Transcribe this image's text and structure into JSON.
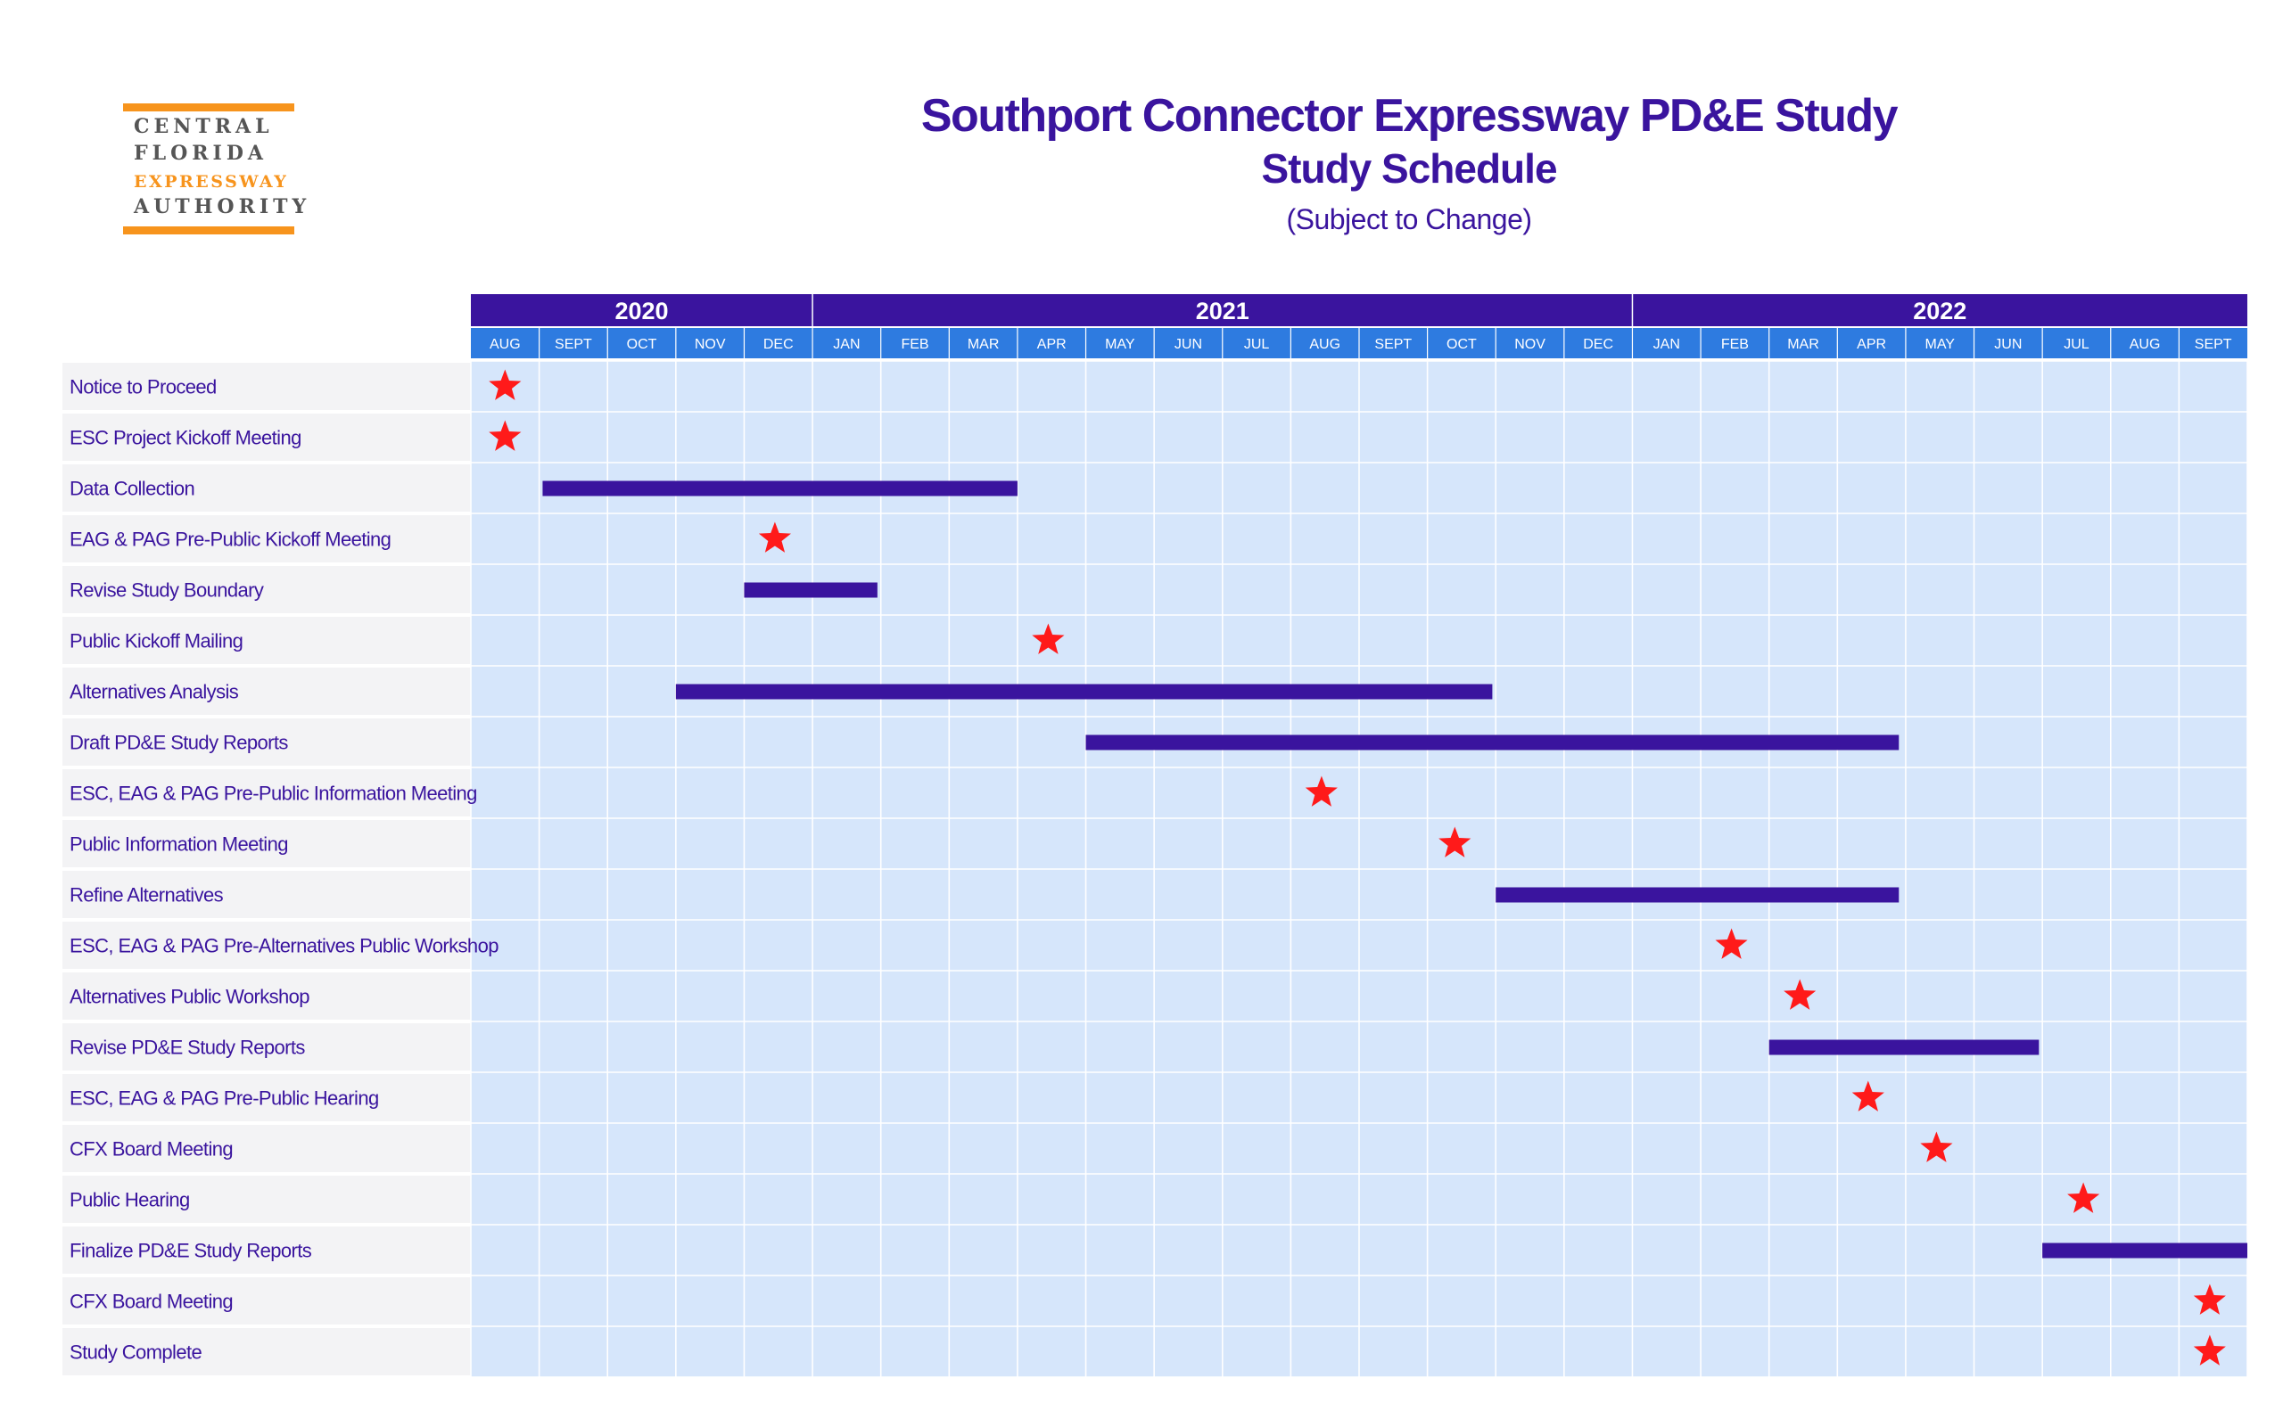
{
  "logo": {
    "lines": [
      "CENTRAL",
      "FLORIDA",
      "EXPRESSWAY",
      "AUTHORITY"
    ],
    "accent": "#f7941d"
  },
  "header": {
    "title": "Southport Connector Expressway PD&E Study",
    "subtitle": "Study Schedule",
    "note": "(Subject to Change)"
  },
  "colors": {
    "header_bg": "#3a149e",
    "header_months_bg": "#2e7be0",
    "grid_bg": "#d6e6fb",
    "bar": "#3a149e",
    "star": "#ff1a1a",
    "label_row_bg": "#f3f3f5"
  },
  "chart_data": {
    "type": "gantt",
    "years": [
      {
        "label": "2020",
        "start": 0,
        "end": 5
      },
      {
        "label": "2021",
        "start": 5,
        "end": 17
      },
      {
        "label": "2022",
        "start": 17,
        "end": 26
      }
    ],
    "months": [
      "AUG",
      "SEPT",
      "OCT",
      "NOV",
      "DEC",
      "JAN",
      "FEB",
      "MAR",
      "APR",
      "MAY",
      "JUN",
      "JUL",
      "AUG",
      "SEPT",
      "OCT",
      "NOV",
      "DEC",
      "JAN",
      "FEB",
      "MAR",
      "APR",
      "MAY",
      "JUN",
      "JUL",
      "AUG",
      "SEPT"
    ],
    "tasks": [
      {
        "label": "Notice to Proceed",
        "type": "milestone",
        "month": 0.5
      },
      {
        "label": "ESC Project Kickoff Meeting",
        "type": "milestone",
        "month": 0.5
      },
      {
        "label": "Data Collection",
        "type": "bar",
        "start": 1.05,
        "end": 8.0
      },
      {
        "label": "EAG & PAG Pre-Public Kickoff Meeting",
        "type": "milestone",
        "month": 4.45
      },
      {
        "label": "Revise Study Boundary",
        "type": "bar",
        "start": 4.0,
        "end": 5.95
      },
      {
        "label": "Public Kickoff Mailing",
        "type": "milestone",
        "month": 8.45
      },
      {
        "label": "Alternatives Analysis",
        "type": "bar",
        "start": 3.0,
        "end": 14.95
      },
      {
        "label": "Draft PD&E Study Reports",
        "type": "bar",
        "start": 9.0,
        "end": 20.9
      },
      {
        "label": "ESC, EAG & PAG Pre-Public Information Meeting",
        "type": "milestone",
        "month": 12.45
      },
      {
        "label": "Public Information Meeting",
        "type": "milestone",
        "month": 14.4
      },
      {
        "label": "Refine Alternatives",
        "type": "bar",
        "start": 15.0,
        "end": 20.9
      },
      {
        "label": "ESC, EAG & PAG Pre-Alternatives Public Workshop",
        "type": "milestone",
        "month": 18.45
      },
      {
        "label": "Alternatives Public Workshop",
        "type": "milestone",
        "month": 19.45
      },
      {
        "label": "Revise PD&E Study Reports",
        "type": "bar",
        "start": 19.0,
        "end": 22.95
      },
      {
        "label": "ESC, EAG & PAG Pre-Public Hearing",
        "type": "milestone",
        "month": 20.45
      },
      {
        "label": "CFX Board Meeting",
        "type": "milestone",
        "month": 21.45
      },
      {
        "label": "Public Hearing",
        "type": "milestone",
        "month": 23.6
      },
      {
        "label": "Finalize PD&E Study Reports",
        "type": "bar",
        "start": 23.0,
        "end": 26.0
      },
      {
        "label": "CFX Board Meeting",
        "type": "milestone",
        "month": 25.45
      },
      {
        "label": "Study Complete",
        "type": "milestone",
        "month": 25.45
      }
    ]
  }
}
